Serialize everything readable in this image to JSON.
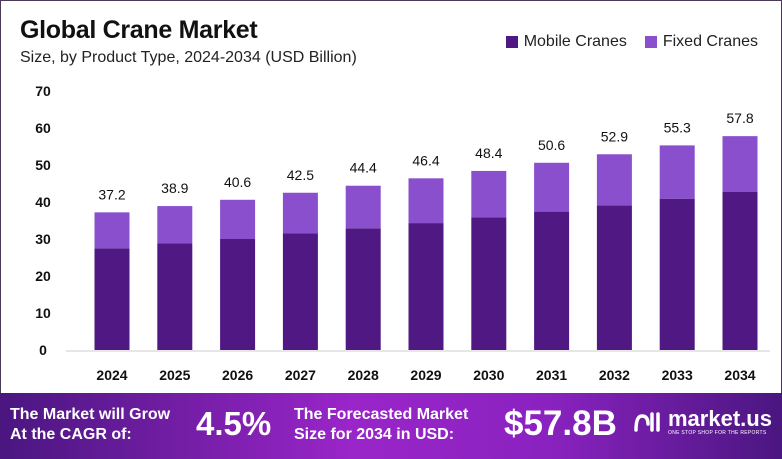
{
  "header": {
    "title": "Global Crane Market",
    "subtitle": "Size, by Product Type, 2024-2034 (USD Billion)"
  },
  "chart_data": {
    "type": "bar",
    "stacked": true,
    "categories": [
      "2024",
      "2025",
      "2026",
      "2027",
      "2028",
      "2029",
      "2030",
      "2031",
      "2032",
      "2033",
      "2034"
    ],
    "series": [
      {
        "name": "Mobile Cranes",
        "color": "#4f1882",
        "values": [
          27.5,
          28.8,
          30.0,
          31.5,
          32.9,
          34.3,
          35.8,
          37.4,
          39.1,
          40.9,
          42.8
        ]
      },
      {
        "name": "Fixed Cranes",
        "color": "#8a4fcc",
        "values": [
          9.7,
          10.1,
          10.6,
          11.0,
          11.5,
          12.1,
          12.6,
          13.2,
          13.8,
          14.4,
          15.0
        ]
      }
    ],
    "totals": [
      "37.2",
      "38.9",
      "40.6",
      "42.5",
      "44.4",
      "46.4",
      "48.4",
      "50.6",
      "52.9",
      "55.3",
      "57.8"
    ],
    "yticks": [
      0,
      10,
      20,
      30,
      40,
      50,
      60,
      70
    ],
    "ylim": [
      0,
      70
    ],
    "grid": false,
    "legend": "top-right"
  },
  "footer": {
    "cagr_label_1": "The Market will Grow",
    "cagr_label_2": "At the CAGR of:",
    "cagr_value": "4.5%",
    "forecast_label_1": "The Forecasted Market",
    "forecast_label_2": "Size for 2034 in USD:",
    "forecast_value": "$57.8B",
    "logo_text": "market.us",
    "logo_tagline": "ONE STOP SHOP FOR THE REPORTS"
  }
}
